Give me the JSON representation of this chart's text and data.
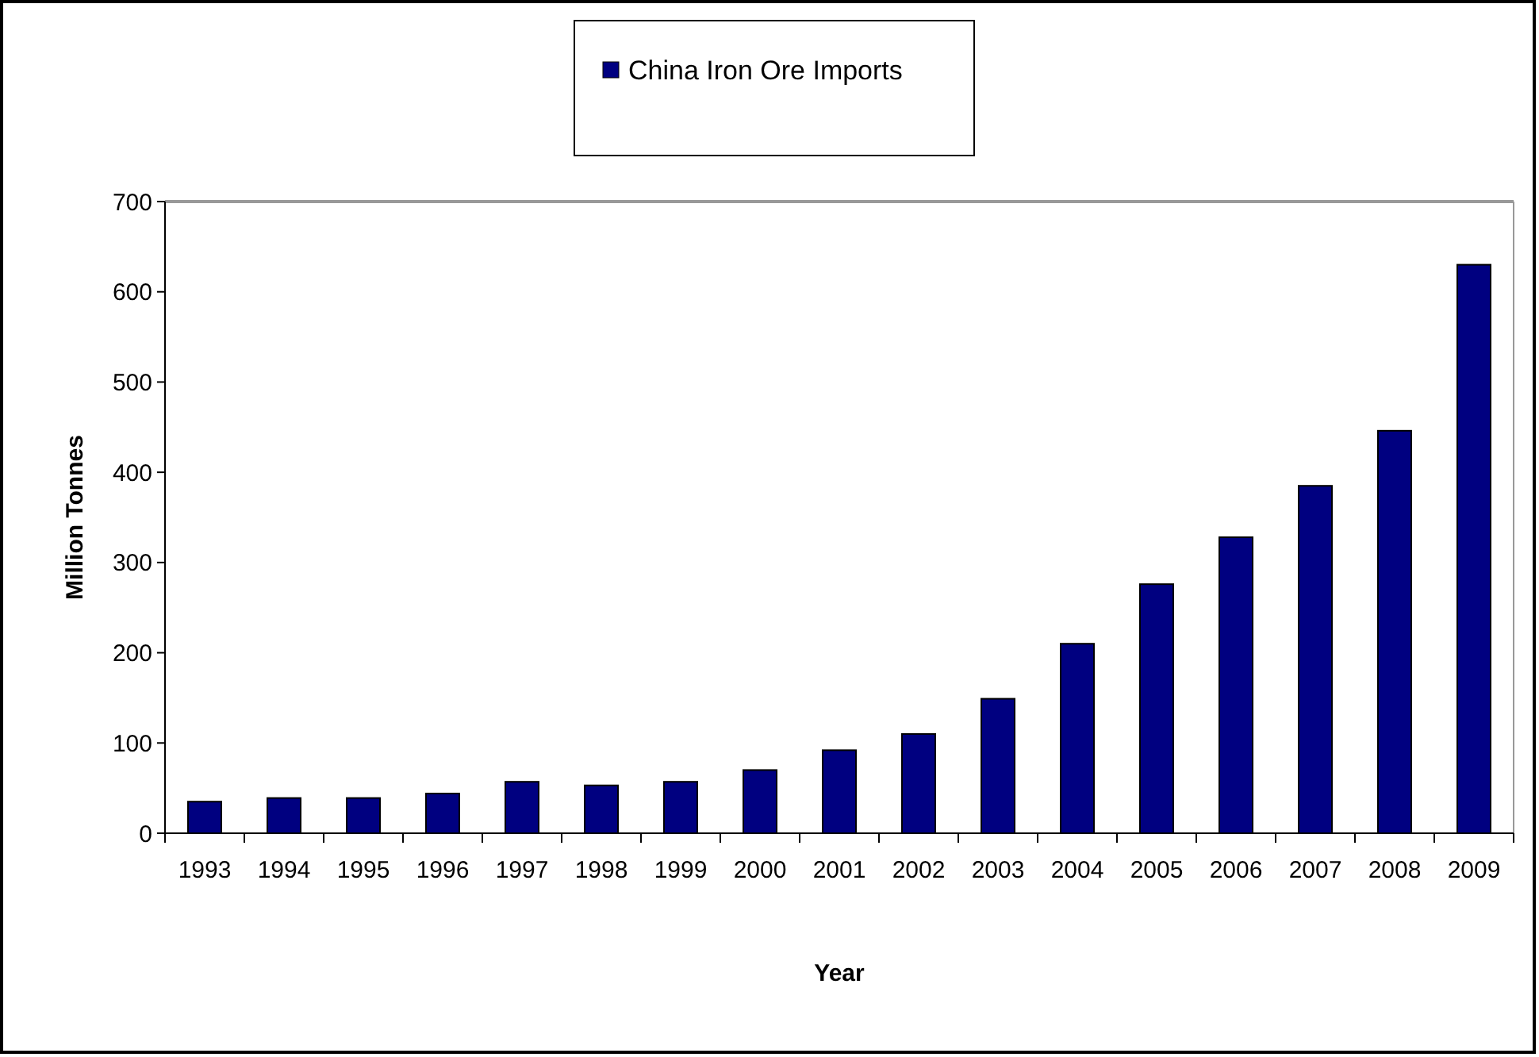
{
  "chart_data": {
    "type": "bar",
    "categories": [
      "1993",
      "1994",
      "1995",
      "1996",
      "1997",
      "1998",
      "1999",
      "2000",
      "2001",
      "2002",
      "2003",
      "2004",
      "2005",
      "2006",
      "2007",
      "2008",
      "2009"
    ],
    "series": [
      {
        "name": "China Iron Ore Imports",
        "color": "#000080",
        "values": [
          35,
          39,
          39,
          44,
          57,
          53,
          57,
          70,
          92,
          110,
          149,
          210,
          276,
          328,
          385,
          446,
          630
        ]
      }
    ],
    "xlabel": "Year",
    "ylabel": "Million Tonnes",
    "ylim": [
      0,
      700
    ],
    "yticks": [
      0,
      100,
      200,
      300,
      400,
      500,
      600,
      700
    ],
    "grid": false,
    "legend": "top"
  }
}
